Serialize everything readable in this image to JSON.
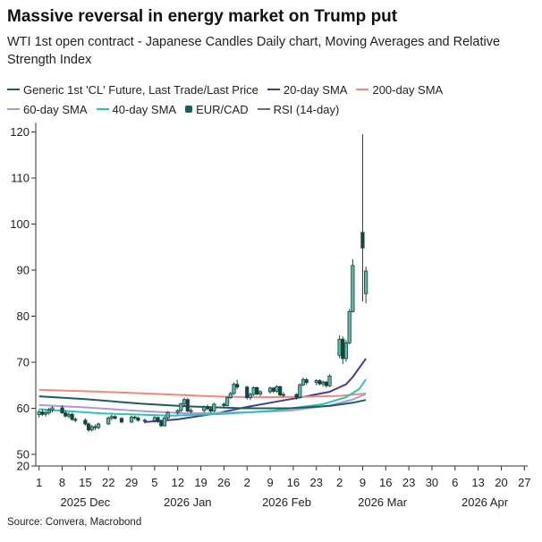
{
  "title": "Massive reversal in energy market on Trump put",
  "subtitle": "WTI 1st open contract  - Japanese Candles Daily chart, Moving Averages and Relative Strength Index",
  "source": "Source: Convera, Macrobond",
  "legend": {
    "row1": [
      {
        "label": "Generic 1st 'CL' Future, Last Trade/Last Price",
        "color": "#1b5e5a",
        "kind": "line"
      },
      {
        "label": "20-day SMA",
        "color": "#4a3a8c",
        "kind": "line"
      },
      {
        "label": "200-day SMA",
        "color": "#ef8a7a",
        "kind": "line"
      }
    ],
    "row2": [
      {
        "label": "60-day SMA",
        "color": "#a89adf",
        "kind": "line"
      },
      {
        "label": "40-day SMA",
        "color": "#2cc4b0",
        "kind": "line"
      },
      {
        "label": "EUR/CAD",
        "color": "#1b5e5a",
        "kind": "dot"
      },
      {
        "label": "RSI (14-day)",
        "color": "#6b6b7b",
        "kind": "line"
      }
    ]
  },
  "chart_data": {
    "type": "candlestick",
    "x_range": [
      "2025-11-30",
      "2026-04-28"
    ],
    "ylim": [
      20,
      122
    ],
    "y_break": [
      20,
      50
    ],
    "y_ticks": [
      120,
      110,
      100,
      90,
      80,
      70,
      60,
      50,
      20
    ],
    "x_tick_labels": [
      "1",
      "8",
      "15",
      "22",
      "29",
      "5",
      "12",
      "19",
      "26",
      "2",
      "9",
      "16",
      "23",
      "2",
      "9",
      "16",
      "23",
      "30",
      "6",
      "13",
      "20",
      "27"
    ],
    "x_tick_dates": [
      "2025-12-01",
      "2025-12-08",
      "2025-12-15",
      "2025-12-22",
      "2025-12-29",
      "2026-01-05",
      "2026-01-12",
      "2026-01-19",
      "2026-01-26",
      "2026-02-02",
      "2026-02-09",
      "2026-02-16",
      "2026-02-23",
      "2026-03-02",
      "2026-03-09",
      "2026-03-16",
      "2026-03-23",
      "2026-03-30",
      "2026-04-06",
      "2026-04-13",
      "2026-04-20",
      "2026-04-27"
    ],
    "x_month_labels": [
      {
        "label": "2025 Dec",
        "date": "2025-12-15"
      },
      {
        "label": "2026 Jan",
        "date": "2026-01-15"
      },
      {
        "label": "2026 Feb",
        "date": "2026-02-14"
      },
      {
        "label": "2026 Mar",
        "date": "2026-03-15"
      },
      {
        "label": "2026 Apr",
        "date": "2026-04-15"
      }
    ],
    "candles": [
      {
        "date": "2025-12-01",
        "o": 58.6,
        "h": 59.6,
        "l": 58.0,
        "c": 59.2
      },
      {
        "date": "2025-12-02",
        "o": 59.2,
        "h": 59.8,
        "l": 58.3,
        "c": 58.7
      },
      {
        "date": "2025-12-03",
        "o": 58.7,
        "h": 59.5,
        "l": 58.2,
        "c": 59.0
      },
      {
        "date": "2025-12-04",
        "o": 59.0,
        "h": 60.1,
        "l": 58.6,
        "c": 59.6
      },
      {
        "date": "2025-12-05",
        "o": 59.6,
        "h": 60.4,
        "l": 59.1,
        "c": 60.1
      },
      {
        "date": "2025-12-08",
        "o": 60.1,
        "h": 60.6,
        "l": 58.8,
        "c": 59.0
      },
      {
        "date": "2025-12-09",
        "o": 59.0,
        "h": 59.5,
        "l": 58.0,
        "c": 58.3
      },
      {
        "date": "2025-12-10",
        "o": 58.3,
        "h": 59.1,
        "l": 57.8,
        "c": 58.7
      },
      {
        "date": "2025-12-11",
        "o": 58.7,
        "h": 59.0,
        "l": 57.3,
        "c": 57.6
      },
      {
        "date": "2025-12-12",
        "o": 57.6,
        "h": 58.0,
        "l": 57.0,
        "c": 57.4
      },
      {
        "date": "2025-12-15",
        "o": 57.4,
        "h": 57.8,
        "l": 56.2,
        "c": 56.6
      },
      {
        "date": "2025-12-16",
        "o": 56.6,
        "h": 56.9,
        "l": 54.9,
        "c": 55.3
      },
      {
        "date": "2025-12-17",
        "o": 55.3,
        "h": 56.4,
        "l": 55.0,
        "c": 56.0
      },
      {
        "date": "2025-12-18",
        "o": 56.0,
        "h": 56.5,
        "l": 55.3,
        "c": 55.8
      },
      {
        "date": "2025-12-19",
        "o": 55.8,
        "h": 56.9,
        "l": 55.5,
        "c": 56.6
      },
      {
        "date": "2025-12-22",
        "o": 56.6,
        "h": 58.2,
        "l": 56.4,
        "c": 57.9
      },
      {
        "date": "2025-12-23",
        "o": 57.9,
        "h": 58.6,
        "l": 57.4,
        "c": 58.2
      },
      {
        "date": "2025-12-24",
        "o": 58.2,
        "h": 58.5,
        "l": 57.6,
        "c": 57.8
      },
      {
        "date": "2025-12-26",
        "o": 57.8,
        "h": 58.1,
        "l": 56.8,
        "c": 57.0
      },
      {
        "date": "2025-12-29",
        "o": 57.0,
        "h": 58.4,
        "l": 56.8,
        "c": 58.1
      },
      {
        "date": "2025-12-30",
        "o": 58.1,
        "h": 58.4,
        "l": 57.5,
        "c": 57.9
      },
      {
        "date": "2025-12-31",
        "o": 57.9,
        "h": 58.2,
        "l": 57.1,
        "c": 57.4
      },
      {
        "date": "2026-01-02",
        "o": 57.4,
        "h": 57.8,
        "l": 56.7,
        "c": 57.3
      },
      {
        "date": "2026-01-05",
        "o": 57.3,
        "h": 58.3,
        "l": 56.9,
        "c": 58.0
      },
      {
        "date": "2026-01-06",
        "o": 58.0,
        "h": 58.2,
        "l": 56.8,
        "c": 57.1
      },
      {
        "date": "2026-01-07",
        "o": 57.1,
        "h": 57.4,
        "l": 55.9,
        "c": 56.2
      },
      {
        "date": "2026-01-08",
        "o": 56.2,
        "h": 58.3,
        "l": 56.0,
        "c": 57.9
      },
      {
        "date": "2026-01-09",
        "o": 57.9,
        "h": 59.4,
        "l": 57.6,
        "c": 59.1
      },
      {
        "date": "2026-01-12",
        "o": 59.1,
        "h": 59.8,
        "l": 58.6,
        "c": 59.5
      },
      {
        "date": "2026-01-13",
        "o": 59.5,
        "h": 61.2,
        "l": 59.2,
        "c": 61.0
      },
      {
        "date": "2026-01-14",
        "o": 61.0,
        "h": 62.3,
        "l": 60.4,
        "c": 61.9
      },
      {
        "date": "2026-01-15",
        "o": 61.9,
        "h": 62.2,
        "l": 59.1,
        "c": 59.4
      },
      {
        "date": "2026-01-16",
        "o": 59.4,
        "h": 60.0,
        "l": 58.9,
        "c": 59.5
      },
      {
        "date": "2026-01-20",
        "o": 59.5,
        "h": 60.6,
        "l": 59.1,
        "c": 60.3
      },
      {
        "date": "2026-01-21",
        "o": 60.3,
        "h": 60.8,
        "l": 59.6,
        "c": 59.9
      },
      {
        "date": "2026-01-22",
        "o": 59.9,
        "h": 60.2,
        "l": 59.0,
        "c": 59.4
      },
      {
        "date": "2026-01-23",
        "o": 59.4,
        "h": 61.2,
        "l": 59.2,
        "c": 60.9
      },
      {
        "date": "2026-01-26",
        "o": 60.9,
        "h": 61.3,
        "l": 60.1,
        "c": 60.6
      },
      {
        "date": "2026-01-27",
        "o": 60.6,
        "h": 62.6,
        "l": 60.4,
        "c": 62.3
      },
      {
        "date": "2026-01-28",
        "o": 62.3,
        "h": 63.6,
        "l": 62.0,
        "c": 63.2
      },
      {
        "date": "2026-01-29",
        "o": 63.2,
        "h": 65.6,
        "l": 62.9,
        "c": 65.2
      },
      {
        "date": "2026-01-30",
        "o": 65.2,
        "h": 66.2,
        "l": 64.1,
        "c": 64.6
      },
      {
        "date": "2026-02-02",
        "o": 64.6,
        "h": 64.9,
        "l": 61.9,
        "c": 62.3
      },
      {
        "date": "2026-02-03",
        "o": 62.3,
        "h": 63.4,
        "l": 61.8,
        "c": 63.0
      },
      {
        "date": "2026-02-04",
        "o": 63.0,
        "h": 64.8,
        "l": 62.7,
        "c": 64.5
      },
      {
        "date": "2026-02-05",
        "o": 64.5,
        "h": 64.7,
        "l": 62.8,
        "c": 63.1
      },
      {
        "date": "2026-02-06",
        "o": 63.1,
        "h": 63.9,
        "l": 62.6,
        "c": 63.6
      },
      {
        "date": "2026-02-09",
        "o": 63.6,
        "h": 64.7,
        "l": 63.2,
        "c": 64.4
      },
      {
        "date": "2026-02-10",
        "o": 64.4,
        "h": 64.6,
        "l": 63.3,
        "c": 63.7
      },
      {
        "date": "2026-02-11",
        "o": 63.7,
        "h": 65.0,
        "l": 63.4,
        "c": 64.7
      },
      {
        "date": "2026-02-12",
        "o": 64.7,
        "h": 64.9,
        "l": 62.6,
        "c": 62.9
      },
      {
        "date": "2026-02-13",
        "o": 62.9,
        "h": 63.5,
        "l": 62.4,
        "c": 63.0
      },
      {
        "date": "2026-02-17",
        "o": 63.0,
        "h": 63.3,
        "l": 61.9,
        "c": 62.4
      },
      {
        "date": "2026-02-18",
        "o": 62.4,
        "h": 65.4,
        "l": 62.2,
        "c": 65.1
      },
      {
        "date": "2026-02-19",
        "o": 65.1,
        "h": 66.7,
        "l": 64.8,
        "c": 66.2
      },
      {
        "date": "2026-02-20",
        "o": 66.2,
        "h": 66.6,
        "l": 65.1,
        "c": 65.6
      },
      {
        "date": "2026-02-23",
        "o": 65.6,
        "h": 66.3,
        "l": 65.0,
        "c": 66.0
      },
      {
        "date": "2026-02-24",
        "o": 66.0,
        "h": 66.3,
        "l": 65.0,
        "c": 65.3
      },
      {
        "date": "2026-02-25",
        "o": 65.3,
        "h": 66.0,
        "l": 64.7,
        "c": 65.7
      },
      {
        "date": "2026-02-26",
        "o": 65.7,
        "h": 65.9,
        "l": 64.5,
        "c": 64.9
      },
      {
        "date": "2026-02-27",
        "o": 64.9,
        "h": 67.4,
        "l": 64.6,
        "c": 67.0
      },
      {
        "date": "2026-03-02",
        "o": 71.5,
        "h": 75.8,
        "l": 70.9,
        "c": 75.0
      },
      {
        "date": "2026-03-03",
        "o": 75.0,
        "h": 75.6,
        "l": 69.6,
        "c": 70.8
      },
      {
        "date": "2026-03-04",
        "o": 70.8,
        "h": 74.8,
        "l": 70.1,
        "c": 74.2
      },
      {
        "date": "2026-03-05",
        "o": 74.2,
        "h": 81.6,
        "l": 73.9,
        "c": 81.0
      },
      {
        "date": "2026-03-06",
        "o": 81.0,
        "h": 92.4,
        "l": 80.8,
        "c": 91.0
      },
      {
        "date": "2026-03-09",
        "o": 98.2,
        "h": 119.5,
        "l": 83.2,
        "c": 94.8
      },
      {
        "date": "2026-03-10",
        "o": 84.9,
        "h": 90.8,
        "l": 82.8,
        "c": 89.8
      }
    ],
    "series": [
      {
        "name": "20-day SMA",
        "color": "#4a3a8c",
        "points": [
          [
            "2026-01-02",
            57.0
          ],
          [
            "2026-01-12",
            57.6
          ],
          [
            "2026-01-23",
            58.8
          ],
          [
            "2026-02-02",
            60.3
          ],
          [
            "2026-02-12",
            61.6
          ],
          [
            "2026-02-20",
            62.6
          ],
          [
            "2026-02-27",
            63.6
          ],
          [
            "2026-03-04",
            65.2
          ],
          [
            "2026-03-06",
            66.8
          ],
          [
            "2026-03-10",
            70.8
          ]
        ]
      },
      {
        "name": "200-day SMA",
        "color": "#ef8a7a",
        "points": [
          [
            "2025-12-01",
            64.0
          ],
          [
            "2025-12-20",
            63.6
          ],
          [
            "2026-01-10",
            63.0
          ],
          [
            "2026-01-26",
            62.5
          ],
          [
            "2026-02-06",
            62.4
          ],
          [
            "2026-02-20",
            62.5
          ],
          [
            "2026-03-02",
            62.7
          ],
          [
            "2026-03-10",
            63.2
          ]
        ]
      },
      {
        "name": "60-day SMA",
        "color": "#a89adf",
        "points": [
          [
            "2025-12-01",
            60.7
          ],
          [
            "2025-12-15",
            60.2
          ],
          [
            "2026-01-01",
            59.4
          ],
          [
            "2026-01-15",
            58.9
          ],
          [
            "2026-02-01",
            59.1
          ],
          [
            "2026-02-15",
            59.5
          ],
          [
            "2026-02-27",
            60.6
          ],
          [
            "2026-03-06",
            61.9
          ],
          [
            "2026-03-10",
            63.1
          ]
        ]
      },
      {
        "name": "40-day SMA",
        "color": "#2cc4b0",
        "points": [
          [
            "2025-12-01",
            59.8
          ],
          [
            "2025-12-20",
            58.9
          ],
          [
            "2026-01-10",
            58.4
          ],
          [
            "2026-01-26",
            58.8
          ],
          [
            "2026-02-10",
            59.5
          ],
          [
            "2026-02-25",
            60.9
          ],
          [
            "2026-03-04",
            62.4
          ],
          [
            "2026-03-08",
            64.2
          ],
          [
            "2026-03-10",
            66.3
          ]
        ]
      },
      {
        "name": "Generic 1st 'CL' Future, Last Trade/Last Price",
        "color": "#1b5e5a",
        "points": [
          [
            "2025-12-01",
            62.6
          ],
          [
            "2025-12-15",
            62.0
          ],
          [
            "2026-01-01",
            61.0
          ],
          [
            "2026-01-15",
            60.4
          ],
          [
            "2026-02-01",
            60.0
          ],
          [
            "2026-02-15",
            60.0
          ],
          [
            "2026-02-27",
            60.5
          ],
          [
            "2026-03-06",
            61.2
          ],
          [
            "2026-03-10",
            61.8
          ]
        ]
      }
    ]
  }
}
